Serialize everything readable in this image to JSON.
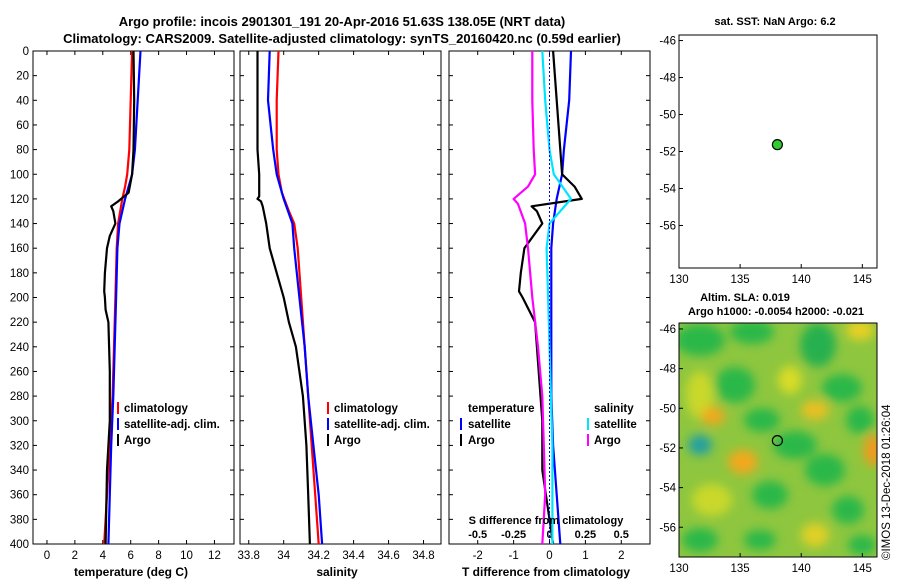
{
  "title": {
    "line1": "Argo profile: incois 2901301_191 20-Apr-2016 51.63S 138.05E (NRT data)",
    "line2": "Climatology: CARS2009. Satellite-adjusted climatology: synTS_20160420.nc (0.59d earlier)"
  },
  "colors": {
    "climatology": "#ff0000",
    "satellite": "#0000ff",
    "argo": "#000000",
    "sat_diff_salinity": "#00e5ff",
    "argo_diff_salinity": "#ff00ff"
  },
  "depth_axis": {
    "ticks": [
      "0",
      "20",
      "40",
      "60",
      "80",
      "100",
      "120",
      "140",
      "160",
      "180",
      "200",
      "220",
      "240",
      "260",
      "280",
      "300",
      "320",
      "340",
      "360",
      "380",
      "400"
    ]
  },
  "chart_data": [
    {
      "id": "temperature",
      "type": "line",
      "xlabel": "temperature (deg C)",
      "xlim": [
        -1,
        13.4
      ],
      "xticks": [
        0,
        2,
        4,
        6,
        8,
        10,
        12
      ],
      "ylim": [
        0,
        400
      ],
      "legend": [
        "climatology",
        "satellite-adj. clim.",
        "Argo"
      ],
      "series": [
        {
          "name": "climatology",
          "color": "#ff0000",
          "depth": [
            0,
            20,
            40,
            60,
            80,
            100,
            110,
            120,
            140,
            160,
            200,
            240,
            280,
            320,
            360,
            400
          ],
          "values": [
            6.1,
            6.05,
            6.0,
            5.95,
            5.9,
            5.75,
            5.6,
            5.4,
            5.1,
            5.0,
            4.9,
            4.8,
            4.7,
            4.5,
            4.3,
            4.1
          ]
        },
        {
          "name": "satellite-adj. clim.",
          "color": "#0000ff",
          "depth": [
            0,
            20,
            40,
            60,
            80,
            100,
            120,
            140,
            160,
            200,
            240,
            280,
            320,
            360,
            400
          ],
          "values": [
            6.7,
            6.6,
            6.5,
            6.4,
            6.3,
            6.1,
            5.6,
            5.2,
            5.05,
            4.95,
            4.85,
            4.75,
            4.6,
            4.5,
            4.4
          ]
        },
        {
          "name": "Argo",
          "color": "#000000",
          "depth": [
            0,
            40,
            80,
            100,
            115,
            122,
            126,
            130,
            140,
            150,
            160,
            180,
            195,
            200,
            210,
            220,
            260,
            300,
            340,
            400
          ],
          "values": [
            6.2,
            6.25,
            6.2,
            6.1,
            5.85,
            5.1,
            4.6,
            4.75,
            4.9,
            4.5,
            4.3,
            4.15,
            4.1,
            4.15,
            4.2,
            4.4,
            4.5,
            4.5,
            4.3,
            4.2
          ]
        }
      ]
    },
    {
      "id": "salinity",
      "type": "line",
      "xlabel": "salinity",
      "xlim": [
        33.75,
        34.9
      ],
      "xticks": [
        33.8,
        34,
        34.2,
        34.4,
        34.6,
        34.8
      ],
      "xtick_labels": [
        "33.8",
        "34",
        "34.2",
        "34.4",
        "34.6",
        "34.8"
      ],
      "ylim": [
        0,
        400
      ],
      "legend": [
        "climatology",
        "satellite-adj. clim.",
        "Argo"
      ],
      "series": [
        {
          "name": "climatology",
          "color": "#ff0000",
          "depth": [
            0,
            40,
            80,
            100,
            115,
            130,
            140,
            160,
            200,
            240,
            280,
            320,
            360,
            400
          ],
          "values": [
            33.97,
            33.96,
            33.96,
            33.97,
            33.99,
            34.03,
            34.06,
            34.08,
            34.1,
            34.12,
            34.14,
            34.16,
            34.18,
            34.2
          ]
        },
        {
          "name": "satellite-adj. clim.",
          "color": "#0000ff",
          "depth": [
            0,
            40,
            80,
            100,
            120,
            140,
            160,
            200,
            240,
            280,
            320,
            360,
            400
          ],
          "values": [
            33.92,
            33.91,
            33.94,
            33.96,
            34.0,
            34.05,
            34.06,
            34.09,
            34.12,
            34.14,
            34.17,
            34.2,
            34.22
          ]
        },
        {
          "name": "Argo",
          "color": "#000000",
          "depth": [
            0,
            40,
            80,
            100,
            118,
            120,
            122,
            126,
            140,
            160,
            180,
            200,
            220,
            240,
            260,
            280,
            320,
            360,
            400
          ],
          "values": [
            33.85,
            33.85,
            33.85,
            33.86,
            33.86,
            33.85,
            33.87,
            33.88,
            33.9,
            33.92,
            33.96,
            34.0,
            34.03,
            34.07,
            34.09,
            34.11,
            34.13,
            34.14,
            34.15
          ]
        }
      ]
    },
    {
      "id": "difference",
      "type": "line",
      "xlabel": "T difference from climatology",
      "x2label": "S difference from climatology",
      "xlim": [
        -2.8,
        2.8
      ],
      "xticks": [
        -2,
        -1,
        0,
        1,
        2
      ],
      "x2ticks": [
        -0.5,
        -0.25,
        0,
        0.25,
        0.5
      ],
      "x2tick_labels": [
        "-0.5",
        "-0.25",
        "0",
        "0.25",
        "0.5"
      ],
      "ylim": [
        0,
        400
      ],
      "legend_temperature": {
        "title": "temperature",
        "entries": [
          "satellite",
          "Argo"
        ]
      },
      "legend_salinity": {
        "title": "salinity",
        "entries": [
          "satellite",
          "Argo"
        ]
      },
      "series": [
        {
          "name": "temperature satellite",
          "color": "#0000ff",
          "depth": [
            0,
            40,
            80,
            100,
            120,
            140,
            160,
            200,
            240,
            280,
            320,
            360,
            400
          ],
          "values": [
            0.6,
            0.55,
            0.4,
            0.35,
            0.2,
            0.1,
            0.05,
            0.05,
            0.05,
            0.05,
            0.1,
            0.2,
            0.3
          ]
        },
        {
          "name": "temperature Argo",
          "color": "#000000",
          "depth": [
            0,
            40,
            80,
            100,
            110,
            120,
            126,
            130,
            140,
            160,
            180,
            195,
            200,
            220,
            260,
            300,
            340,
            400
          ],
          "values": [
            0.1,
            0.2,
            0.3,
            0.35,
            0.7,
            0.9,
            -0.5,
            -0.35,
            -0.2,
            -0.7,
            -0.8,
            -0.85,
            -0.75,
            -0.4,
            -0.3,
            -0.2,
            -0.2,
            0.1
          ]
        },
        {
          "name": "salinity satellite",
          "color": "#00e5ff",
          "depth": [
            0,
            40,
            80,
            100,
            120,
            140,
            160,
            200,
            240,
            280,
            320,
            360,
            400
          ],
          "values": [
            -0.05,
            -0.03,
            0.0,
            0.03,
            0.15,
            0.0,
            -0.02,
            -0.01,
            0.0,
            0.01,
            0.02,
            0.02,
            0.02
          ]
        },
        {
          "name": "salinity Argo",
          "color": "#ff00ff",
          "depth": [
            0,
            40,
            80,
            100,
            110,
            120,
            124,
            140,
            160,
            200,
            240,
            280,
            320,
            360,
            400
          ],
          "values": [
            -0.12,
            -0.12,
            -0.11,
            -0.1,
            -0.15,
            -0.25,
            -0.22,
            -0.17,
            -0.15,
            -0.12,
            -0.08,
            -0.05,
            -0.04,
            -0.03,
            -0.05
          ]
        }
      ]
    },
    {
      "id": "sst_map",
      "type": "scatter",
      "title": "sat. SST: NaN Argo: 6.2",
      "xlim": [
        130,
        146.2
      ],
      "ylim": [
        -58.3,
        -45.7
      ],
      "xticks": [
        130,
        135,
        140,
        145
      ],
      "yticks": [
        -46,
        -48,
        -50,
        -52,
        -54,
        -56
      ],
      "yticks_labels": [
        "-46",
        "-48",
        "-50",
        "-52",
        "-54",
        "-56"
      ],
      "points": [
        {
          "x": 138.05,
          "y": -51.63,
          "color": "#2ecc2e"
        }
      ]
    },
    {
      "id": "sla_map",
      "type": "heatmap",
      "title": "Altim. SLA: 0.019",
      "subtitle": "Argo h1000: -0.0054 h2000: -0.021",
      "xlim": [
        130,
        146.2
      ],
      "ylim": [
        -57.5,
        -45.7
      ],
      "xticks": [
        130,
        135,
        140,
        145
      ],
      "yticks": [
        -46,
        -48,
        -50,
        -52,
        -54,
        -56
      ],
      "yticks_labels": [
        "-46",
        "-48",
        "-50",
        "-52",
        "-54",
        "-56"
      ],
      "points": [
        {
          "x": 138.05,
          "y": -51.63
        }
      ]
    }
  ],
  "watermark": "©IMOS 13-Dec-2018 01:26:04"
}
